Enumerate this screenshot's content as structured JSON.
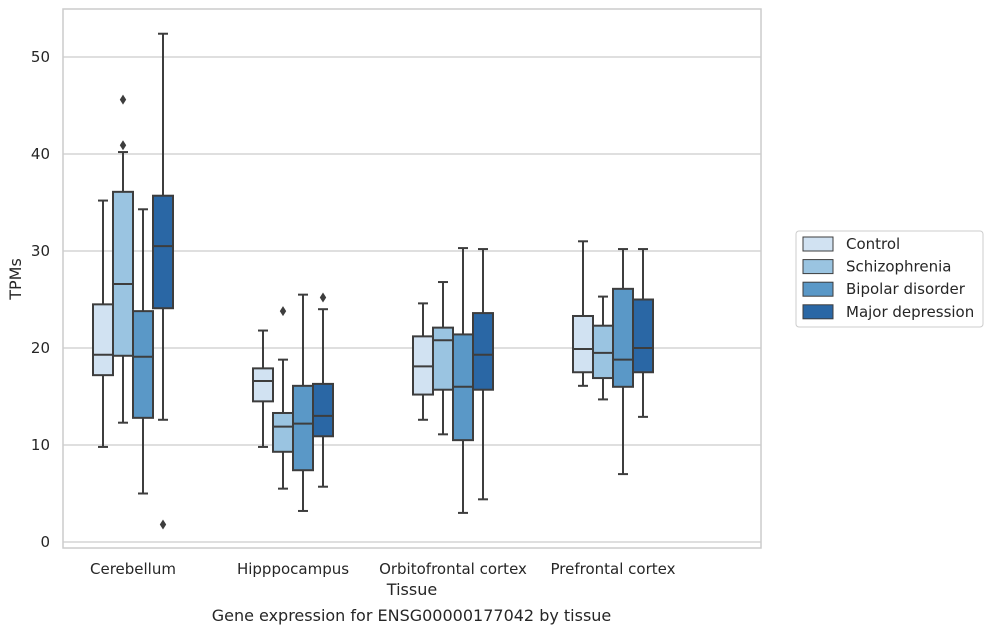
{
  "caption": "Gene expression for ENSG00000177042 by tissue",
  "chart_data": {
    "type": "boxplot",
    "xlabel": "Tissue",
    "ylabel": "TPMs",
    "ylim": [
      -0.5,
      55
    ],
    "yticks": [
      0,
      10,
      20,
      30,
      40,
      50
    ],
    "grid": "horizontal",
    "legend_position": "right",
    "categories": [
      "Cerebellum",
      "Hipppocampus",
      "Orbitofrontal cortex",
      "Prefrontal cortex"
    ],
    "series": [
      {
        "name": "Control",
        "color": "#d1e2f2",
        "boxes": [
          {
            "whisker_low": 9.8,
            "q1": 17.2,
            "median": 19.3,
            "q3": 24.5,
            "whisker_high": 35.2,
            "outliers": []
          },
          {
            "whisker_low": 9.8,
            "q1": 14.5,
            "median": 16.6,
            "q3": 17.9,
            "whisker_high": 21.8,
            "outliers": []
          },
          {
            "whisker_low": 12.6,
            "q1": 15.2,
            "median": 18.1,
            "q3": 21.2,
            "whisker_high": 24.6,
            "outliers": []
          },
          {
            "whisker_low": 16.1,
            "q1": 17.5,
            "median": 19.9,
            "q3": 23.3,
            "whisker_high": 31.0,
            "outliers": []
          }
        ]
      },
      {
        "name": "Schizophrenia",
        "color": "#9ac4e1",
        "boxes": [
          {
            "whisker_low": 12.3,
            "q1": 19.2,
            "median": 26.6,
            "q3": 36.1,
            "whisker_high": 40.2,
            "outliers": [
              45.6,
              40.9
            ]
          },
          {
            "whisker_low": 5.5,
            "q1": 9.3,
            "median": 11.9,
            "q3": 13.3,
            "whisker_high": 18.8,
            "outliers": [
              23.8
            ]
          },
          {
            "whisker_low": 11.1,
            "q1": 15.7,
            "median": 20.8,
            "q3": 22.1,
            "whisker_high": 26.8,
            "outliers": []
          },
          {
            "whisker_low": 14.7,
            "q1": 16.9,
            "median": 19.5,
            "q3": 22.3,
            "whisker_high": 25.3,
            "outliers": []
          }
        ]
      },
      {
        "name": "Bipolar disorder",
        "color": "#5a98c7",
        "boxes": [
          {
            "whisker_low": 5.0,
            "q1": 12.8,
            "median": 19.1,
            "q3": 23.8,
            "whisker_high": 34.3,
            "outliers": []
          },
          {
            "whisker_low": 3.2,
            "q1": 7.4,
            "median": 12.2,
            "q3": 16.1,
            "whisker_high": 25.5,
            "outliers": []
          },
          {
            "whisker_low": 3.0,
            "q1": 10.5,
            "median": 16.0,
            "q3": 21.4,
            "whisker_high": 30.3,
            "outliers": []
          },
          {
            "whisker_low": 7.0,
            "q1": 16.0,
            "median": 18.8,
            "q3": 26.1,
            "whisker_high": 30.2,
            "outliers": []
          }
        ]
      },
      {
        "name": "Major depression",
        "color": "#2a67a5",
        "boxes": [
          {
            "whisker_low": 12.6,
            "q1": 24.1,
            "median": 30.5,
            "q3": 35.7,
            "whisker_high": 52.4,
            "outliers": [
              1.8
            ]
          },
          {
            "whisker_low": 5.7,
            "q1": 10.9,
            "median": 13.0,
            "q3": 16.3,
            "whisker_high": 24.0,
            "outliers": [
              25.2
            ]
          },
          {
            "whisker_low": 4.4,
            "q1": 15.7,
            "median": 19.3,
            "q3": 23.6,
            "whisker_high": 30.2,
            "outliers": []
          },
          {
            "whisker_low": 12.9,
            "q1": 17.5,
            "median": 20.0,
            "q3": 25.0,
            "whisker_high": 30.2,
            "outliers": []
          }
        ]
      }
    ]
  }
}
